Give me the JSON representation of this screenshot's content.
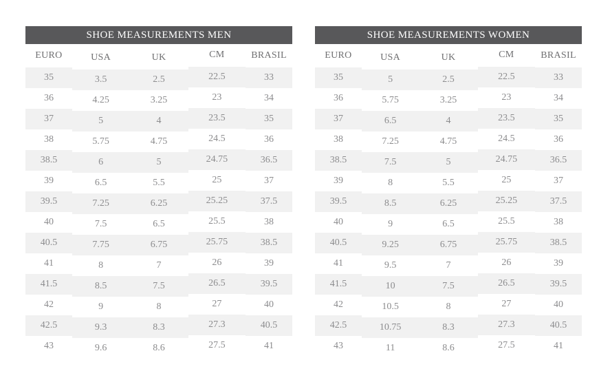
{
  "colors": {
    "header_bg": "#58585a",
    "header_text": "#ffffff",
    "column_header_text": "#6f6f71",
    "cell_text": "#8c8c8e",
    "stripe_bg": "#f1f1f1",
    "page_bg": "#ffffff"
  },
  "chart_data": [
    {
      "type": "table",
      "title": "SHOE MEASUREMENTS MEN",
      "columns": [
        "EURO",
        "USA",
        "UK",
        "CM",
        "BRASIL"
      ],
      "rows": [
        [
          "35",
          "3.5",
          "2.5",
          "22.5",
          "33"
        ],
        [
          "36",
          "4.25",
          "3.25",
          "23",
          "34"
        ],
        [
          "37",
          "5",
          "4",
          "23.5",
          "35"
        ],
        [
          "38",
          "5.75",
          "4.75",
          "24.5",
          "36"
        ],
        [
          "38.5",
          "6",
          "5",
          "24.75",
          "36.5"
        ],
        [
          "39",
          "6.5",
          "5.5",
          "25",
          "37"
        ],
        [
          "39.5",
          "7.25",
          "6.25",
          "25.25",
          "37.5"
        ],
        [
          "40",
          "7.5",
          "6.5",
          "25.5",
          "38"
        ],
        [
          "40.5",
          "7.75",
          "6.75",
          "25.75",
          "38.5"
        ],
        [
          "41",
          "8",
          "7",
          "26",
          "39"
        ],
        [
          "41.5",
          "8.5",
          "7.5",
          "26.5",
          "39.5"
        ],
        [
          "42",
          "9",
          "8",
          "27",
          "40"
        ],
        [
          "42.5",
          "9.3",
          "8.3",
          "27.3",
          "40.5"
        ],
        [
          "43",
          "9.6",
          "8.6",
          "27.5",
          "41"
        ]
      ],
      "layout": {
        "stripes": "alternating starting with gray",
        "grid": false
      }
    },
    {
      "type": "table",
      "title": "SHOE MEASUREMENTS WOMEN",
      "columns": [
        "EURO",
        "USA",
        "UK",
        "CM",
        "BRASIL"
      ],
      "rows": [
        [
          "35",
          "5",
          "2.5",
          "22.5",
          "33"
        ],
        [
          "36",
          "5.75",
          "3.25",
          "23",
          "34"
        ],
        [
          "37",
          "6.5",
          "4",
          "23.5",
          "35"
        ],
        [
          "38",
          "7.25",
          "4.75",
          "24.5",
          "36"
        ],
        [
          "38.5",
          "7.5",
          "5",
          "24.75",
          "36.5"
        ],
        [
          "39",
          "8",
          "5.5",
          "25",
          "37"
        ],
        [
          "39.5",
          "8.5",
          "6.25",
          "25.25",
          "37.5"
        ],
        [
          "40",
          "9",
          "6.5",
          "25.5",
          "38"
        ],
        [
          "40.5",
          "9.25",
          "6.75",
          "25.75",
          "38.5"
        ],
        [
          "41",
          "9.5",
          "7",
          "26",
          "39"
        ],
        [
          "41.5",
          "10",
          "7.5",
          "26.5",
          "39.5"
        ],
        [
          "42",
          "10.5",
          "8",
          "27",
          "40"
        ],
        [
          "42.5",
          "10.75",
          "8.3",
          "27.3",
          "40.5"
        ],
        [
          "43",
          "11",
          "8.6",
          "27.5",
          "41"
        ]
      ],
      "layout": {
        "stripes": "alternating starting with gray",
        "grid": false
      }
    }
  ]
}
